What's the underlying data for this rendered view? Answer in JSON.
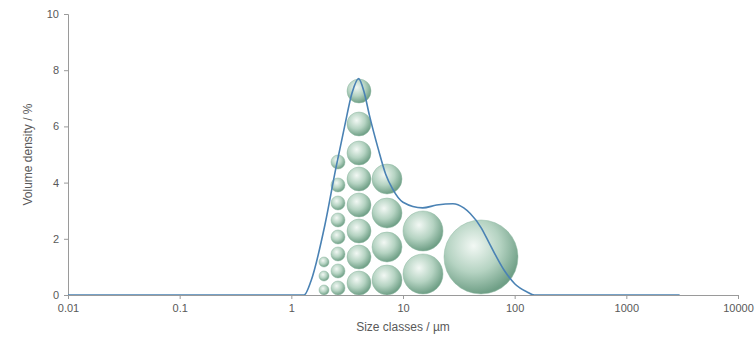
{
  "chart_data": {
    "type": "line",
    "x_label": "Size classes / µm",
    "y_label": "Volume density / %",
    "x": [
      0.01,
      1.3,
      1.5,
      2,
      2.5,
      3,
      3.5,
      4,
      4.5,
      5,
      6,
      7,
      8,
      10,
      15,
      20,
      28,
      35,
      40,
      50,
      60,
      80,
      100,
      130,
      150,
      3000
    ],
    "values": [
      0,
      0,
      0.5,
      2.5,
      4.5,
      6.0,
      7.2,
      7.7,
      7.2,
      6.4,
      5.2,
      4.3,
      3.8,
      3.3,
      3.1,
      3.2,
      3.25,
      3.1,
      2.9,
      2.4,
      1.8,
      0.9,
      0.4,
      0.1,
      0,
      0
    ],
    "color": "#4a82b4",
    "log": "x",
    "grid": false,
    "xlim": [
      0.01,
      10000
    ],
    "xticks": [
      0.01,
      0.1,
      1,
      10,
      100,
      1000,
      10000
    ],
    "ylim": [
      0,
      10
    ],
    "yticks": [
      0,
      2,
      4,
      6,
      8,
      10
    ]
  }
}
